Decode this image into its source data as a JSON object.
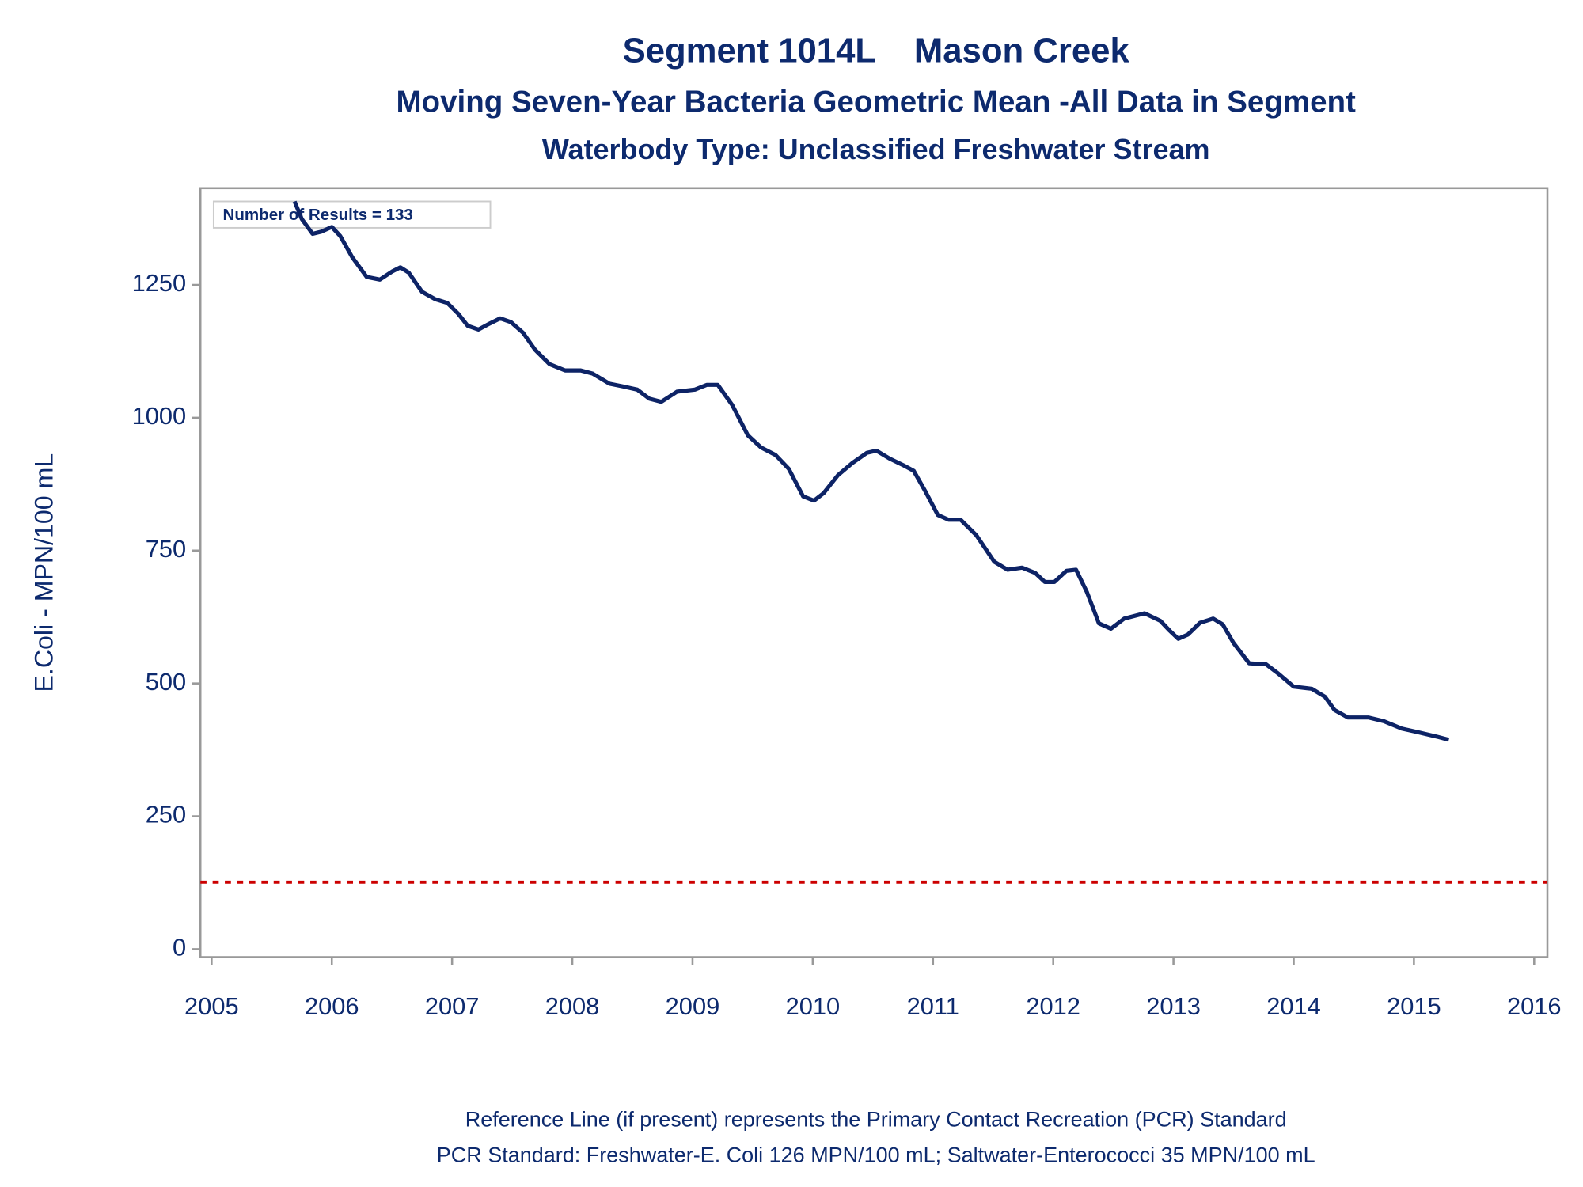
{
  "chart_data": {
    "type": "line",
    "title": "Segment 1014L    Mason Creek",
    "subtitle": "Moving Seven-Year Bacteria Geometric Mean -All Data in Segment",
    "subtitle2": "Waterbody Type: Unclassified Freshwater Stream",
    "y_label": "E.Coli - MPN/100 mL",
    "annotation": "Number of Results = 133",
    "footnotes": [
      "Reference Line (if present) represents the Primary Contact Recreation (PCR) Standard",
      "PCR Standard: Freshwater-E. Coli 126 MPN/100 mL; Saltwater-Enterococci 35 MPN/100 mL"
    ],
    "reference_line": {
      "value": 126,
      "color": "#cc0000"
    },
    "xlim": [
      2004.907,
      2016.11
    ],
    "xticks": [
      2005,
      2006,
      2007,
      2008,
      2009,
      2010,
      2011,
      2012,
      2013,
      2014,
      2015,
      2016
    ],
    "ylim": [
      -15,
      1432
    ],
    "yticks": [
      0,
      250,
      500,
      750,
      1000,
      1250
    ],
    "series": [
      {
        "color": "#0d2366",
        "x": [
          2005.69,
          2005.75,
          2005.84,
          2005.91,
          2006.0,
          2006.07,
          2006.17,
          2006.29,
          2006.4,
          2006.5,
          2006.57,
          2006.64,
          2006.75,
          2006.86,
          2006.96,
          2007.05,
          2007.13,
          2007.22,
          2007.31,
          2007.4,
          2007.49,
          2007.59,
          2007.69,
          2007.81,
          2007.94,
          2008.07,
          2008.17,
          2008.31,
          2008.42,
          2008.54,
          2008.64,
          2008.74,
          2008.87,
          2009.02,
          2009.12,
          2009.21,
          2009.33,
          2009.46,
          2009.57,
          2009.69,
          2009.8,
          2009.92,
          2010.01,
          2010.09,
          2010.21,
          2010.33,
          2010.45,
          2010.53,
          2010.64,
          2010.75,
          2010.84,
          2010.94,
          2011.04,
          2011.13,
          2011.23,
          2011.36,
          2011.51,
          2011.62,
          2011.74,
          2011.85,
          2011.93,
          2012.01,
          2012.11,
          2012.19,
          2012.28,
          2012.38,
          2012.48,
          2012.59,
          2012.76,
          2012.89,
          2012.97,
          2013.04,
          2013.12,
          2013.22,
          2013.33,
          2013.41,
          2013.5,
          2013.63,
          2013.77,
          2013.87,
          2014.0,
          2014.15,
          2014.26,
          2014.34,
          2014.45,
          2014.62,
          2014.75,
          2014.9,
          2015.04,
          2015.19,
          2015.29
        ],
        "values": [
          1407,
          1374,
          1346,
          1350,
          1359,
          1342,
          1302,
          1265,
          1260,
          1275,
          1283,
          1273,
          1237,
          1223,
          1216,
          1196,
          1173,
          1166,
          1177,
          1187,
          1180,
          1160,
          1128,
          1101,
          1089,
          1089,
          1083,
          1064,
          1059,
          1053,
          1036,
          1030,
          1049,
          1053,
          1062,
          1062,
          1024,
          967,
          944,
          930,
          904,
          852,
          844,
          858,
          892,
          915,
          934,
          938,
          923,
          911,
          900,
          860,
          817,
          808,
          808,
          779,
          729,
          714,
          718,
          708,
          691,
          691,
          712,
          714,
          672,
          613,
          603,
          622,
          632,
          618,
          599,
          584,
          592,
          614,
          622,
          611,
          576,
          538,
          536,
          519,
          494,
          490,
          475,
          450,
          436,
          436,
          429,
          415,
          408,
          400,
          394
        ]
      }
    ]
  }
}
